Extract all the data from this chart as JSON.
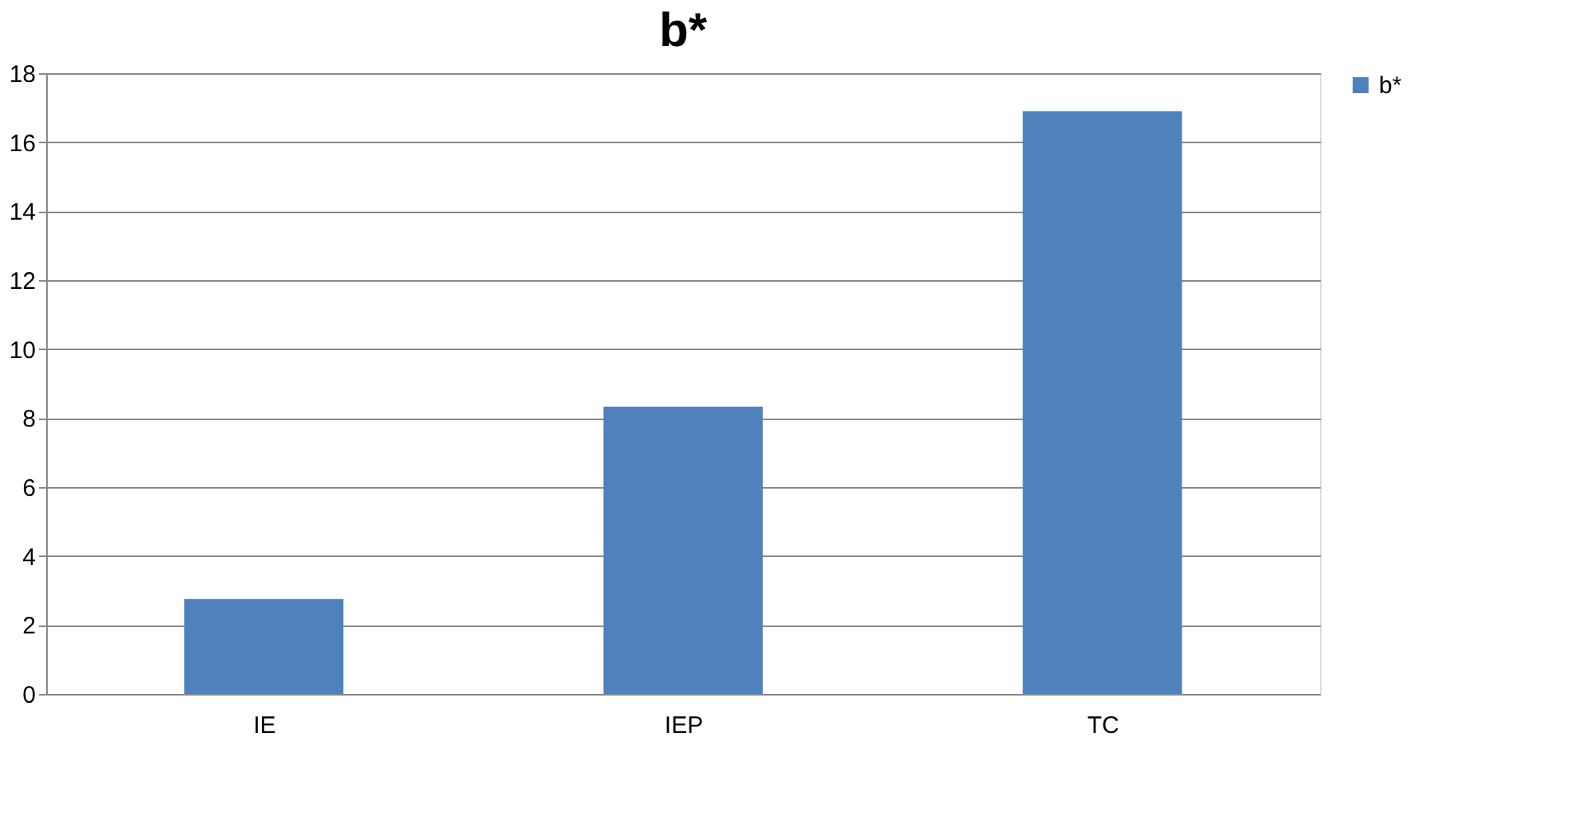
{
  "chart_data": {
    "type": "bar",
    "title": "b*",
    "categories": [
      "IE",
      "IEP",
      "TC"
    ],
    "series": [
      {
        "name": "b*",
        "color": "#4f81bd",
        "values": [
          2.75,
          8.33,
          16.9
        ]
      }
    ],
    "ylim": [
      0,
      18
    ],
    "yticks": [
      0,
      2,
      4,
      6,
      8,
      10,
      12,
      14,
      16,
      18
    ],
    "grid": "y",
    "legend": "right"
  }
}
